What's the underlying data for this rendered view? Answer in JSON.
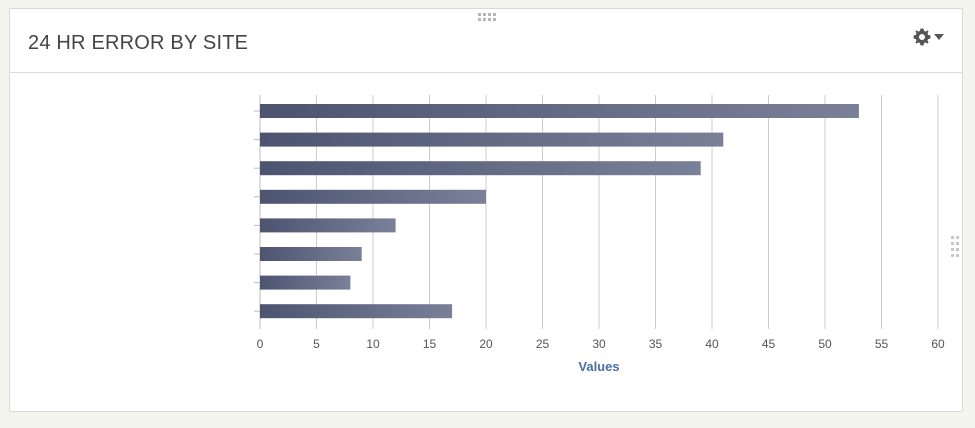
{
  "widget": {
    "title": "24 HR ERROR BY SITE"
  },
  "icons": {
    "settings": "gear-icon",
    "settings_caret": "caret-down-icon",
    "drag_top": "grip-horizontal-icon",
    "drag_right": "grip-vertical-icon"
  },
  "colors": {
    "bar_start": "#4d5470",
    "bar_end": "#7a8098",
    "axis_title": "#4a6fa5",
    "grid": "#cccccc",
    "title": "#444444"
  },
  "chart_data": {
    "type": "bar",
    "orientation": "horizontal",
    "categories": [
      "",
      "",
      "",
      "",
      "",
      "",
      "",
      ""
    ],
    "values": [
      53,
      41,
      39,
      20,
      12,
      9,
      8,
      17
    ],
    "xlabel": "Values",
    "xlim": [
      0,
      60
    ],
    "xticks": [
      0,
      5,
      10,
      15,
      20,
      25,
      30,
      35,
      40,
      45,
      50,
      55,
      60
    ],
    "grid": true,
    "legend": "none"
  }
}
